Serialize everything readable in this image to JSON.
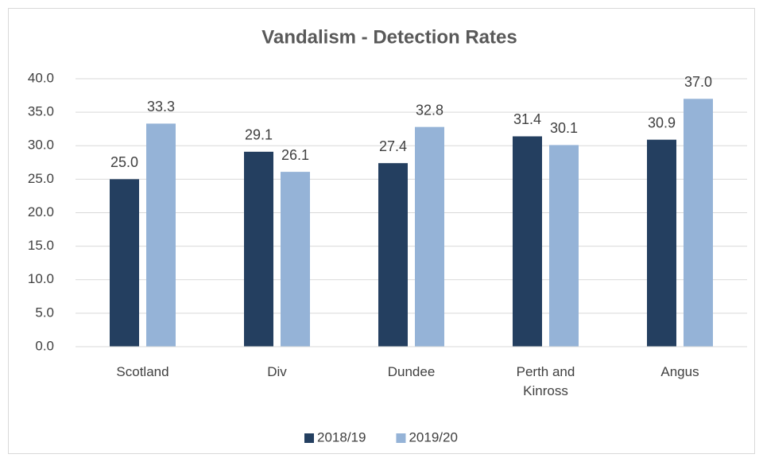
{
  "chart_data": {
    "type": "bar",
    "title": "Vandalism - Detection Rates",
    "categories": [
      "Scotland",
      "Div",
      "Dundee",
      "Perth and Kinross",
      "Angus"
    ],
    "series": [
      {
        "name": "2018/19",
        "color": "#243f60",
        "values": [
          25.0,
          29.1,
          27.4,
          31.4,
          30.9
        ],
        "value_labels": [
          "25.0",
          "29.1",
          "27.4",
          "31.4",
          "30.9"
        ]
      },
      {
        "name": "2019/20",
        "color": "#95b3d7",
        "values": [
          33.3,
          26.1,
          32.8,
          30.1,
          37.0
        ],
        "value_labels": [
          "33.3",
          "26.1",
          "32.8",
          "30.1",
          "37.0"
        ]
      }
    ],
    "ylim": [
      0,
      40
    ],
    "yticks": [
      {
        "value": 0,
        "label": "0.0"
      },
      {
        "value": 5,
        "label": "5.0"
      },
      {
        "value": 10,
        "label": "10.0"
      },
      {
        "value": 15,
        "label": "15.0"
      },
      {
        "value": 20,
        "label": "20.0"
      },
      {
        "value": 25,
        "label": "25.0"
      },
      {
        "value": 30,
        "label": "30.0"
      },
      {
        "value": 35,
        "label": "35.0"
      },
      {
        "value": 40,
        "label": "40.0"
      }
    ],
    "grid": true,
    "legend": "bottom"
  }
}
